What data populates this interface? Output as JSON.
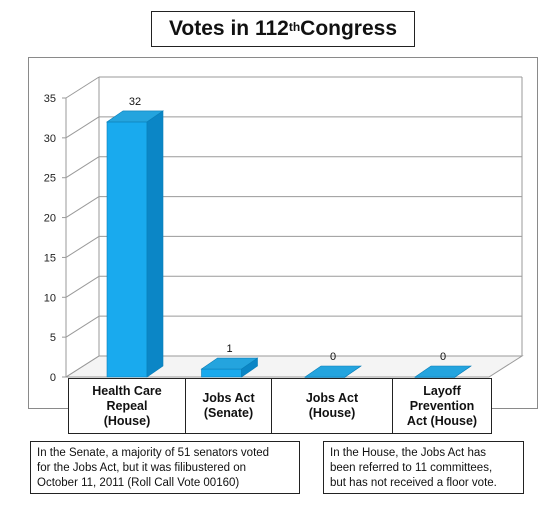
{
  "title": {
    "main": "Votes in 112",
    "superscript": "th",
    "rest": " Congress"
  },
  "chart_data": {
    "type": "bar",
    "title": "Votes in 112th Congress",
    "categories": [
      "Health Care\nRepeal\n(House)",
      "Jobs Act\n(Senate)",
      "Jobs Act\n(House)",
      "Layoff\nPrevention\nAct (House)"
    ],
    "values": [
      32,
      1,
      0,
      0
    ],
    "data_labels": [
      "32",
      "1",
      "0",
      "0"
    ],
    "y_ticks": [
      "0",
      "5",
      "10",
      "15",
      "20",
      "25",
      "30",
      "35"
    ],
    "ylim": [
      0,
      35
    ],
    "grid": true,
    "style": "3d-column",
    "bar_color": "#19aaee"
  },
  "notes": {
    "senate": "In the Senate, a majority of 51 senators voted\nfor the Jobs Act, but it was filibustered on\nOctober 11, 2011 (Roll Call Vote 00160)",
    "house": "In the House, the Jobs Act has\nbeen referred to 11 committees,\nbut has not received a floor vote."
  }
}
